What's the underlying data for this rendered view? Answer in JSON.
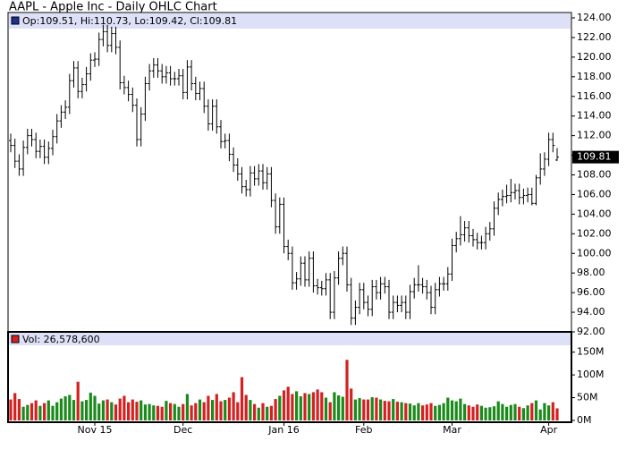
{
  "chart_data": {
    "type": "ohlc",
    "title": "AAPL - Apple Inc - Daily OHLC Chart",
    "legend": "Op:109.51, Hi:110.73, Lo:109.42, Cl:109.81",
    "categories": [
      null,
      null,
      null,
      null,
      null,
      null,
      null,
      null,
      null,
      null,
      null,
      null,
      null,
      null,
      null,
      null,
      null,
      null,
      null,
      null,
      "Nov 15",
      null,
      null,
      null,
      null,
      null,
      null,
      null,
      null,
      null,
      null,
      null,
      null,
      null,
      null,
      null,
      null,
      null,
      null,
      null,
      null,
      "Dec",
      null,
      null,
      null,
      null,
      null,
      null,
      null,
      null,
      null,
      null,
      null,
      null,
      null,
      null,
      null,
      null,
      null,
      null,
      null,
      null,
      null,
      null,
      null,
      "Jan 16",
      null,
      null,
      null,
      null,
      null,
      null,
      null,
      null,
      null,
      null,
      null,
      null,
      null,
      null,
      null,
      null,
      null,
      null,
      "Feb",
      null,
      null,
      null,
      null,
      null,
      null,
      null,
      null,
      null,
      null,
      null,
      null,
      null,
      null,
      null,
      null,
      null,
      null,
      null,
      null,
      "Mar",
      null,
      null,
      null,
      null,
      null,
      null,
      null,
      null,
      null,
      null,
      null,
      null,
      null,
      null,
      null,
      null,
      null,
      null,
      null,
      null,
      null,
      null,
      "Apr",
      null,
      null
    ],
    "open": [
      111.5,
      111.0,
      109.4,
      108.6,
      110.8,
      112.0,
      111.6,
      110.4,
      110.9,
      109.8,
      110.7,
      111.9,
      113.5,
      114.4,
      114.9,
      117.6,
      118.9,
      116.5,
      117.2,
      118.3,
      119.7,
      119.8,
      121.8,
      122.6,
      121.2,
      122.4,
      121.0,
      117.4,
      116.9,
      116.2,
      115.1,
      111.6,
      114.2,
      117.3,
      118.6,
      119.2,
      118.6,
      118.0,
      118.4,
      117.8,
      117.8,
      118.1,
      116.4,
      119.0,
      117.3,
      116.3,
      116.8,
      115.0,
      113.2,
      115.0,
      112.9,
      111.4,
      111.5,
      110.1,
      109.0,
      108.1,
      106.8,
      106.5,
      108.2,
      107.6,
      108.4,
      107.2,
      108.1,
      105.4,
      102.7,
      105.0,
      100.7,
      100.0,
      97.0,
      97.4,
      99.0,
      97.3,
      99.5,
      96.7,
      96.5,
      96.4,
      97.3,
      94.0,
      97.5,
      99.5,
      100.0,
      96.8,
      93.4,
      94.5,
      96.3,
      95.0,
      94.3,
      96.6,
      96.0,
      96.9,
      96.6,
      94.0,
      95.0,
      94.7,
      95.0,
      94.0,
      96.1,
      96.8,
      96.8,
      96.6,
      96.0,
      94.5,
      96.3,
      96.9,
      96.9,
      97.9,
      100.8,
      101.5,
      101.9,
      102.6,
      101.8,
      101.4,
      101.1,
      101.1,
      102.0,
      102.5,
      104.6,
      105.5,
      105.8,
      105.9,
      106.2,
      106.4,
      105.7,
      105.9,
      106.0,
      105.1,
      107.7,
      108.6,
      109.6,
      111.6,
      109.51
    ],
    "high": [
      112.2,
      111.7,
      110.1,
      111.5,
      112.7,
      112.7,
      112.3,
      111.6,
      111.6,
      111.4,
      112.6,
      114.2,
      115.1,
      115.6,
      118.3,
      119.6,
      119.6,
      117.9,
      119.0,
      120.4,
      120.5,
      122.5,
      123.3,
      123.3,
      123.1,
      123.1,
      121.7,
      118.1,
      117.6,
      116.9,
      115.8,
      114.9,
      118.0,
      119.3,
      119.9,
      119.9,
      119.3,
      119.1,
      119.1,
      118.5,
      118.8,
      118.8,
      119.7,
      119.7,
      118.0,
      117.5,
      117.5,
      115.7,
      115.7,
      115.7,
      113.6,
      112.2,
      112.2,
      110.8,
      109.7,
      108.8,
      107.5,
      108.9,
      108.9,
      109.1,
      109.1,
      108.8,
      108.8,
      106.1,
      105.7,
      105.7,
      101.4,
      100.7,
      98.1,
      99.7,
      99.7,
      100.2,
      100.2,
      97.4,
      97.2,
      98.0,
      98.0,
      98.2,
      100.2,
      100.7,
      100.7,
      97.5,
      95.2,
      97.0,
      97.0,
      95.7,
      97.3,
      97.3,
      97.6,
      97.6,
      97.3,
      95.7,
      95.7,
      95.7,
      95.7,
      96.8,
      97.5,
      98.8,
      97.5,
      97.3,
      96.7,
      97.0,
      97.6,
      97.6,
      98.6,
      101.5,
      102.2,
      103.8,
      103.3,
      103.3,
      102.5,
      102.1,
      101.8,
      102.7,
      103.2,
      105.3,
      106.2,
      106.5,
      107.0,
      107.6,
      107.1,
      107.1,
      106.6,
      106.7,
      106.7,
      108.0,
      110.2,
      110.3,
      112.3,
      112.3,
      110.73
    ],
    "low": [
      110.3,
      108.7,
      107.9,
      107.9,
      110.1,
      110.9,
      109.7,
      109.7,
      109.1,
      109.1,
      110.0,
      111.2,
      112.8,
      113.7,
      114.2,
      116.9,
      115.8,
      115.8,
      116.5,
      117.6,
      119.0,
      119.1,
      121.1,
      120.5,
      120.5,
      120.3,
      116.7,
      116.2,
      115.5,
      114.4,
      110.9,
      110.9,
      113.5,
      116.6,
      117.9,
      117.9,
      117.3,
      117.3,
      117.1,
      117.1,
      117.1,
      115.7,
      115.7,
      116.6,
      115.6,
      115.6,
      114.3,
      112.5,
      112.5,
      112.2,
      110.7,
      110.7,
      109.4,
      108.3,
      107.4,
      106.1,
      105.8,
      105.8,
      106.9,
      106.9,
      106.5,
      106.5,
      104.7,
      102.0,
      102.0,
      100.0,
      99.3,
      96.3,
      96.3,
      96.7,
      96.6,
      96.6,
      96.0,
      95.8,
      95.7,
      95.7,
      93.3,
      93.3,
      96.8,
      98.8,
      96.1,
      92.7,
      92.7,
      93.8,
      94.3,
      93.6,
      93.6,
      95.3,
      95.3,
      95.9,
      93.3,
      93.3,
      94.0,
      94.0,
      93.3,
      93.3,
      95.4,
      96.1,
      95.9,
      95.3,
      93.8,
      93.8,
      95.6,
      96.2,
      96.2,
      97.2,
      100.1,
      100.8,
      101.2,
      101.1,
      100.7,
      100.4,
      100.4,
      100.4,
      101.3,
      101.8,
      103.9,
      104.8,
      105.1,
      105.2,
      105.5,
      105.0,
      105.0,
      105.2,
      104.9,
      104.9,
      107.0,
      107.9,
      108.9,
      110.3,
      109.42
    ],
    "close": [
      111.0,
      109.4,
      108.6,
      110.8,
      112.0,
      111.6,
      110.4,
      110.9,
      109.8,
      110.7,
      111.9,
      113.5,
      114.4,
      114.9,
      117.6,
      118.9,
      116.5,
      117.2,
      118.3,
      119.7,
      119.8,
      121.8,
      122.6,
      121.2,
      122.4,
      121.0,
      117.4,
      116.9,
      116.2,
      115.1,
      111.6,
      114.2,
      117.3,
      118.6,
      119.2,
      118.6,
      118.0,
      118.4,
      117.8,
      117.8,
      118.1,
      116.4,
      119.0,
      117.3,
      116.3,
      116.8,
      115.0,
      113.2,
      115.0,
      112.9,
      111.4,
      111.5,
      110.1,
      109.0,
      108.1,
      106.8,
      106.5,
      108.2,
      107.6,
      108.4,
      107.2,
      108.1,
      105.4,
      102.7,
      105.0,
      100.7,
      100.0,
      97.0,
      97.4,
      99.0,
      97.3,
      99.5,
      96.7,
      96.5,
      96.4,
      97.3,
      94.0,
      97.5,
      99.5,
      100.0,
      96.8,
      93.4,
      94.5,
      96.3,
      95.0,
      94.3,
      96.6,
      96.0,
      96.9,
      96.6,
      94.0,
      95.0,
      94.7,
      95.0,
      94.0,
      96.1,
      96.8,
      96.8,
      96.6,
      96.0,
      94.5,
      96.3,
      96.9,
      96.9,
      97.9,
      100.8,
      101.5,
      101.9,
      102.6,
      101.8,
      101.4,
      101.1,
      101.1,
      102.0,
      102.5,
      104.6,
      105.5,
      105.8,
      105.9,
      106.2,
      106.4,
      105.7,
      105.9,
      106.0,
      105.1,
      107.7,
      108.6,
      109.6,
      111.6,
      111.0,
      109.81
    ],
    "color": "#000000",
    "grid": false,
    "ylim": [
      92,
      124
    ],
    "yticks": [
      {
        "value": 92,
        "label": "92.00"
      },
      {
        "value": 94,
        "label": "94.00"
      },
      {
        "value": 96,
        "label": "96.00"
      },
      {
        "value": 98,
        "label": "98.00"
      },
      {
        "value": 100,
        "label": "100.00"
      },
      {
        "value": 102,
        "label": "102.00"
      },
      {
        "value": 104,
        "label": "104.00"
      },
      {
        "value": 106,
        "label": "106.00"
      },
      {
        "value": 108,
        "label": "108.00"
      },
      {
        "value": 110,
        "label": "110.00"
      },
      {
        "value": 112,
        "label": "112.00"
      },
      {
        "value": 114,
        "label": "114.00"
      },
      {
        "value": 116,
        "label": "116.00"
      },
      {
        "value": 118,
        "label": "118.00"
      },
      {
        "value": 120,
        "label": "120.00"
      },
      {
        "value": 122,
        "label": "122.00"
      },
      {
        "value": 124,
        "label": "124.00"
      }
    ],
    "last_price": {
      "value": 109.81,
      "label": "109.81"
    },
    "volume": {
      "label": "Vol: 26,578,600",
      "up_color": "#1a8a1a",
      "down_color": "#d42020",
      "values": [
        46,
        60,
        47,
        30,
        34,
        38,
        44,
        32,
        38,
        44,
        32,
        40,
        48,
        53,
        56,
        45,
        85,
        42,
        45,
        61,
        54,
        37,
        44,
        46,
        40,
        35,
        48,
        54,
        40,
        46,
        41,
        44,
        35,
        36,
        33,
        32,
        30,
        43,
        38,
        36,
        30,
        36,
        58,
        33,
        38,
        46,
        40,
        54,
        45,
        58,
        42,
        45,
        50,
        62,
        40,
        95,
        56,
        45,
        36,
        28,
        38,
        30,
        32,
        47,
        54,
        66,
        74,
        58,
        64,
        53,
        60,
        58,
        62,
        68,
        62,
        50,
        40,
        62,
        55,
        52,
        133,
        70,
        46,
        49,
        46,
        46,
        51,
        50,
        46,
        43,
        42,
        47,
        41,
        40,
        38,
        37,
        33,
        38,
        33,
        35,
        38,
        32,
        34,
        38,
        50,
        44,
        42,
        48,
        36,
        33,
        30,
        35,
        32,
        28,
        29,
        31,
        42,
        36,
        30,
        34,
        36,
        30,
        27,
        33,
        38,
        44,
        24,
        38,
        33,
        40,
        26.5786
      ],
      "ylim": [
        0,
        165
      ],
      "yticks": [
        {
          "value": 0,
          "label": "0M"
        },
        {
          "value": 50,
          "label": "50M"
        },
        {
          "value": 100,
          "label": "100M"
        },
        {
          "value": 150,
          "label": "150M"
        }
      ]
    }
  }
}
